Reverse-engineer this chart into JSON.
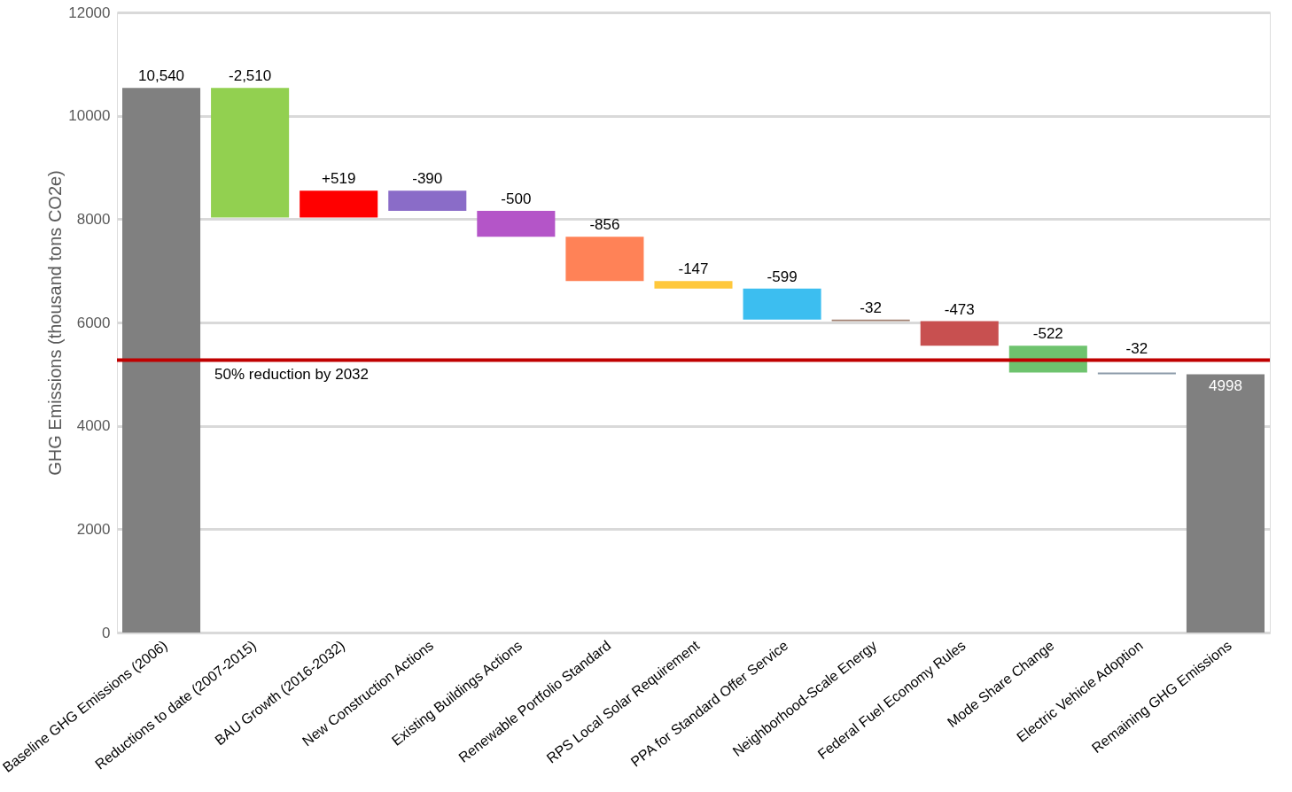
{
  "chart_data": {
    "type": "bar",
    "ylabel": "GHG Emissions (thousand tons CO2e)",
    "categories": [
      "Baseline GHG Emissions (2006)",
      "Reductions to date (2007-2015)",
      "BAU Growth (2016-2032)",
      "New Construction Actions",
      "Existing Buildings Actions",
      "Renewable Portfolio Standard",
      "RPS Local Solar Requirement",
      "PPA for Standard Offer Service",
      "Neighborhood-Scale Energy",
      "Federal Fuel Economy Rules",
      "Mode Share Change",
      "Electric Vehicle Adoption",
      "Remaining GHG Emissions"
    ],
    "values": [
      10540,
      -2510,
      519,
      -390,
      -500,
      -856,
      -147,
      -599,
      -32,
      -473,
      -522,
      -32,
      4998
    ],
    "base": [
      0,
      10540,
      8030,
      8549,
      8159,
      7659,
      6803,
      6656,
      6057,
      6025,
      5552,
      5030,
      0
    ],
    "colors": [
      "#808080",
      "#92d050",
      "#ff0000",
      "#8a6cc8",
      "#b455c8",
      "#ff8257",
      "#ffc83c",
      "#3cbef0",
      "#a08070",
      "#c85050",
      "#6ec36e",
      "#8c9baa",
      "#808080"
    ],
    "value_labels": [
      "10,540",
      "-2,510",
      "+519",
      "-390",
      "-500",
      "-856",
      "-147",
      "-599",
      "-32",
      "-473",
      "-522",
      "-32",
      "4998"
    ],
    "ylim": [
      0,
      12000
    ],
    "yticks": [
      0,
      2000,
      4000,
      6000,
      8000,
      10000,
      12000
    ],
    "grid": "y",
    "ref_lines": [
      {
        "axis": "y",
        "value": 5270,
        "label": "50% reduction by 2032",
        "color": "#c00000"
      }
    ]
  }
}
